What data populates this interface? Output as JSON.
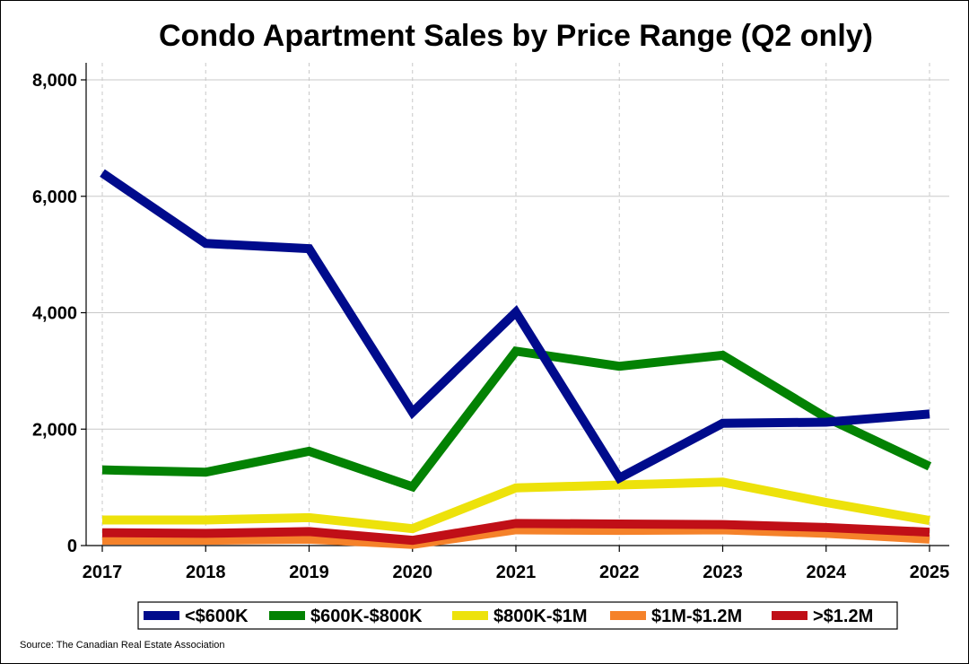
{
  "chart_data": {
    "type": "line",
    "title": "Condo Apartment Sales by Price Range (Q2 only)",
    "xlabel": "",
    "ylabel": "",
    "x": [
      "2017",
      "2018",
      "2019",
      "2020",
      "2021",
      "2022",
      "2023",
      "2024",
      "2025"
    ],
    "ylim": [
      0,
      8000
    ],
    "yticks": [
      0,
      2000,
      4000,
      6000,
      8000
    ],
    "ytick_labels": [
      "0",
      "2,000",
      "4,000",
      "6,000",
      "8,000"
    ],
    "grid": true,
    "legend_position": "bottom",
    "series": [
      {
        "name": "<$600K",
        "color": "#000b8c",
        "values": [
          6400,
          5190,
          5100,
          2290,
          4010,
          1160,
          2100,
          2120,
          2260
        ]
      },
      {
        "name": "$600K-$800K",
        "color": "#038203",
        "values": [
          1300,
          1260,
          1620,
          1010,
          3340,
          3080,
          3270,
          2200,
          1360
        ]
      },
      {
        "name": "$800K-$1M",
        "color": "#ede20b",
        "values": [
          440,
          440,
          480,
          290,
          990,
          1040,
          1090,
          740,
          430
        ]
      },
      {
        "name": "$1M-$1.2M",
        "color": "#f5822a",
        "values": [
          90,
          90,
          110,
          20,
          270,
          260,
          270,
          210,
          110
        ]
      },
      {
        "name": ">$1.2M",
        "color": "#c00f17",
        "values": [
          220,
          210,
          240,
          90,
          380,
          370,
          360,
          310,
          230
        ]
      }
    ],
    "source": "Source: The Canadian Real Estate Association"
  }
}
